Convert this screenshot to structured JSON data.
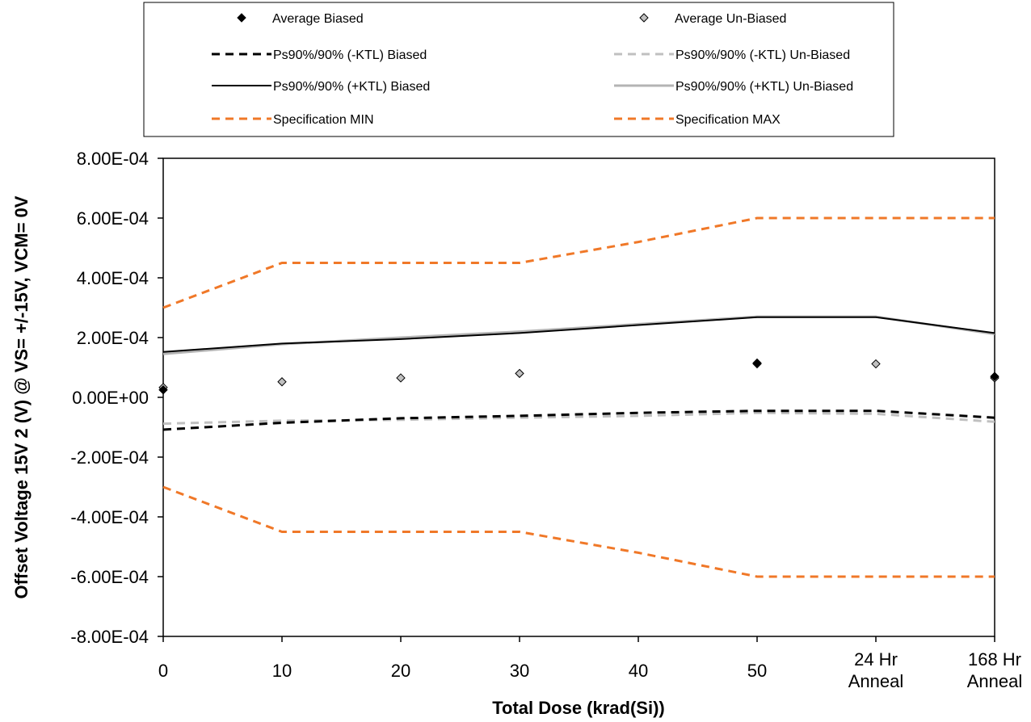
{
  "chart_data": {
    "type": "line",
    "xlabel": "Total Dose (krad(Si))",
    "ylabel": "Offset Voltage 15V 2 (V) @ VS= +/-15V, VCM= 0V",
    "ylim": [
      -0.0008,
      0.0008
    ],
    "x_categories": [
      "0",
      "10",
      "20",
      "30",
      "40",
      "50",
      "24 Hr|Anneal",
      "168 Hr|Anneal"
    ],
    "y_ticks": [
      {
        "value": 0.0008,
        "label": "8.00E-04"
      },
      {
        "value": 0.0006,
        "label": "6.00E-04"
      },
      {
        "value": 0.0004,
        "label": "4.00E-04"
      },
      {
        "value": 0.0002,
        "label": "2.00E-04"
      },
      {
        "value": 0.0,
        "label": "0.00E+00"
      },
      {
        "value": -0.0002,
        "label": "-2.00E-04"
      },
      {
        "value": -0.0004,
        "label": "-4.00E-04"
      },
      {
        "value": -0.0006,
        "label": "-6.00E-04"
      },
      {
        "value": -0.0008,
        "label": "-8.00E-04"
      }
    ],
    "grid": false,
    "legend_position": "top",
    "series": [
      {
        "name": "Average Biased",
        "kind": "marker",
        "marker": "diamond",
        "color": "#000000",
        "stroke": "#000000",
        "points": [
          [
            0,
            2.5e-05
          ],
          [
            5,
            0.000115
          ],
          [
            7,
            7e-05
          ]
        ]
      },
      {
        "name": "Average Un-Biased",
        "kind": "marker",
        "marker": "diamond",
        "color": "#c0c0c0",
        "stroke": "#000000",
        "points": [
          [
            0,
            3.3e-05
          ],
          [
            1,
            5.2e-05
          ],
          [
            2,
            6.5e-05
          ],
          [
            3,
            8e-05
          ],
          [
            5,
            0.000112
          ],
          [
            6,
            0.000112
          ],
          [
            7,
            6.5e-05
          ]
        ]
      },
      {
        "name": "Ps90%/90% (-KTL) Biased",
        "kind": "line",
        "dash": "10,7",
        "color": "#000000",
        "width": 3,
        "points": [
          [
            0,
            -0.000108
          ],
          [
            1,
            -8.5e-05
          ],
          [
            2,
            -7e-05
          ],
          [
            3,
            -6.2e-05
          ],
          [
            4,
            -5.2e-05
          ],
          [
            5,
            -4.5e-05
          ],
          [
            6,
            -4.5e-05
          ],
          [
            7,
            -6.8e-05
          ]
        ]
      },
      {
        "name": "Ps90%/90% (-KTL) Un-Biased",
        "kind": "line",
        "dash": "10,7",
        "color": "#c0c0c0",
        "width": 3,
        "points": [
          [
            0,
            -8.8e-05
          ],
          [
            1,
            -7.8e-05
          ],
          [
            2,
            -7.5e-05
          ],
          [
            3,
            -6.8e-05
          ],
          [
            4,
            -6.2e-05
          ],
          [
            5,
            -5.2e-05
          ],
          [
            6,
            -5.5e-05
          ],
          [
            7,
            -8.2e-05
          ]
        ]
      },
      {
        "name": "Ps90%/90% (+KTL) Biased",
        "kind": "line",
        "dash": "",
        "color": "#000000",
        "width": 2,
        "points": [
          [
            0,
            0.000152
          ],
          [
            1,
            0.00018
          ],
          [
            2,
            0.000195
          ],
          [
            3,
            0.000215
          ],
          [
            4,
            0.000242
          ],
          [
            5,
            0.000268
          ],
          [
            6,
            0.000268
          ],
          [
            7,
            0.000215
          ]
        ]
      },
      {
        "name": "Ps90%/90% (+KTL) Un-Biased",
        "kind": "line",
        "dash": "",
        "color": "#b4b4b4",
        "width": 3,
        "points": [
          [
            0,
            0.000145
          ],
          [
            1,
            0.000178
          ],
          [
            2,
            0.0002
          ],
          [
            3,
            0.00022
          ],
          [
            4,
            0.000245
          ],
          [
            5,
            0.00027
          ],
          [
            6,
            0.00027
          ],
          [
            7,
            0.000212
          ]
        ]
      },
      {
        "name": "Specification MIN",
        "kind": "line",
        "dash": "10,7",
        "color": "#f07828",
        "width": 3,
        "points": [
          [
            0,
            -0.0003
          ],
          [
            1,
            -0.00045
          ],
          [
            2,
            -0.00045
          ],
          [
            3,
            -0.00045
          ],
          [
            4,
            -0.00052
          ],
          [
            5,
            -0.0006
          ],
          [
            6,
            -0.0006
          ],
          [
            7,
            -0.0006
          ]
        ]
      },
      {
        "name": "Specification MAX",
        "kind": "line",
        "dash": "10,7",
        "color": "#f07828",
        "width": 3,
        "points": [
          [
            0,
            0.0003
          ],
          [
            1,
            0.00045
          ],
          [
            2,
            0.00045
          ],
          [
            3,
            0.00045
          ],
          [
            4,
            0.00052
          ],
          [
            5,
            0.0006
          ],
          [
            6,
            0.0006
          ],
          [
            7,
            0.0006
          ]
        ]
      }
    ],
    "legend": [
      "Average Biased",
      "Average Un-Biased",
      "Ps90%/90% (-KTL) Biased",
      "Ps90%/90% (-KTL) Un-Biased",
      "Ps90%/90% (+KTL) Biased",
      "Ps90%/90% (+KTL) Un-Biased",
      "Specification MIN",
      "Specification MAX"
    ]
  }
}
